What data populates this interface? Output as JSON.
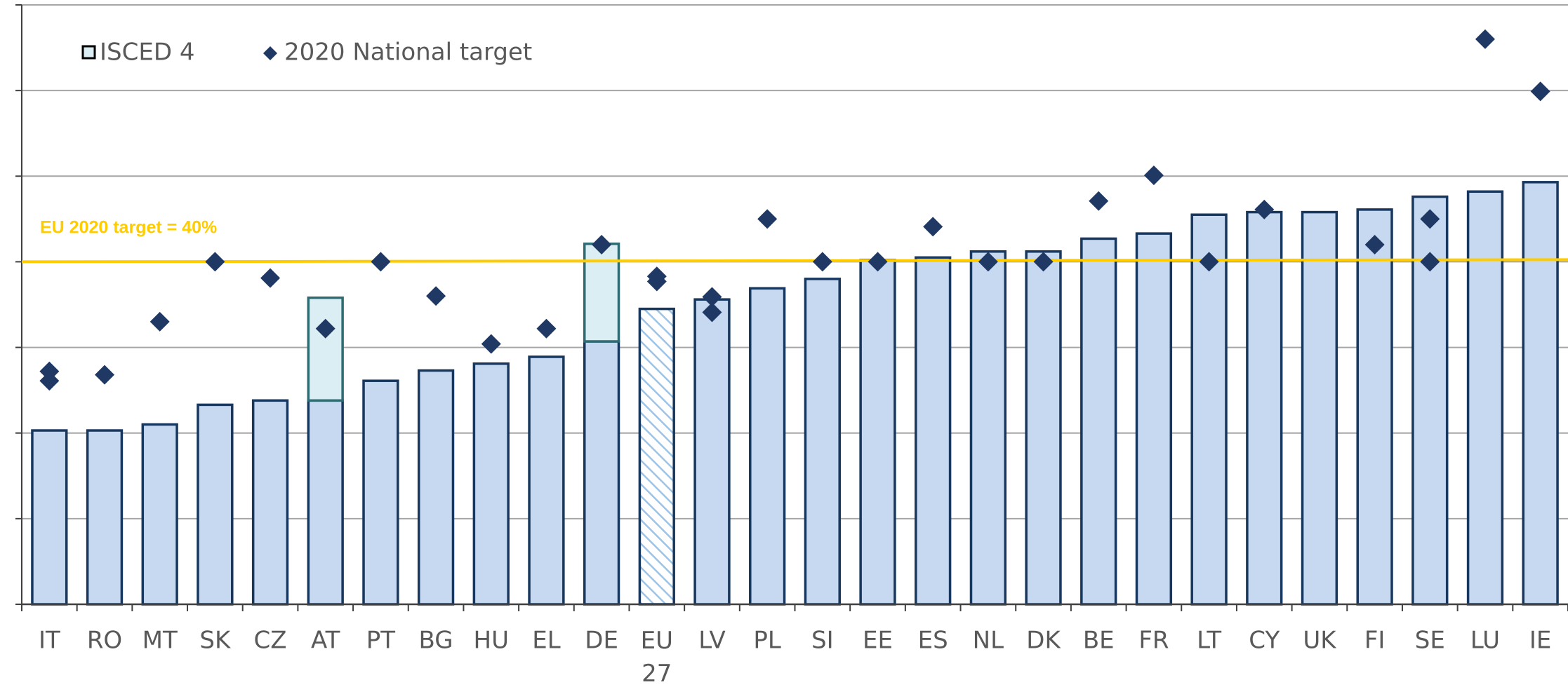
{
  "chart_data": {
    "type": "bar",
    "categories": [
      "IT",
      "RO",
      "MT",
      "SK",
      "CZ",
      "AT",
      "PT",
      "BG",
      "HU",
      "EL",
      "DE",
      "EU 27",
      "LV",
      "PL",
      "SI",
      "EE",
      "ES",
      "NL",
      "DK",
      "BE",
      "FR",
      "LT",
      "CY",
      "UK",
      "FI",
      "SE",
      "LU",
      "IE"
    ],
    "values": [
      20.3,
      20.3,
      21.0,
      23.3,
      23.8,
      23.8,
      26.1,
      27.3,
      28.1,
      28.9,
      30.7,
      34.5,
      35.6,
      36.9,
      38.0,
      40.2,
      40.5,
      41.2,
      41.2,
      42.7,
      43.3,
      45.5,
      45.8,
      45.8,
      46.1,
      47.6,
      48.2,
      49.3
    ],
    "color": "#c6d9f1",
    "hatched_categories": [
      "EU 27"
    ],
    "series": [
      {
        "name": "ISCED 4",
        "color": "#dbeef4",
        "values": [
          null,
          null,
          null,
          null,
          null,
          12.0,
          null,
          null,
          null,
          null,
          11.4,
          null,
          null,
          null,
          null,
          null,
          null,
          null,
          null,
          null,
          null,
          null,
          null,
          null,
          null,
          null,
          null,
          null
        ]
      }
    ],
    "markers": {
      "name": "2020 National target",
      "color": "#1f3864",
      "values": [
        [
          27.2,
          26.1
        ],
        26.8,
        33.0,
        40,
        38.1,
        32.2,
        40,
        36.0,
        30.4,
        32.2,
        42.0,
        [
          38.3,
          37.7
        ],
        [
          35.9,
          34.1
        ],
        45.0,
        40,
        40,
        44.1,
        40,
        40,
        47.1,
        50.1,
        40,
        46.1,
        null,
        42.0,
        [
          45.0,
          40
        ],
        66.0,
        59.9
      ]
    },
    "reference_line": {
      "label": "EU 2020 target = 40%",
      "value": 40,
      "color": "#ffcc00"
    },
    "ylim": [
      0,
      70
    ],
    "yticks": [
      0,
      10,
      20,
      30,
      40,
      50,
      60,
      70
    ],
    "grid": true
  }
}
